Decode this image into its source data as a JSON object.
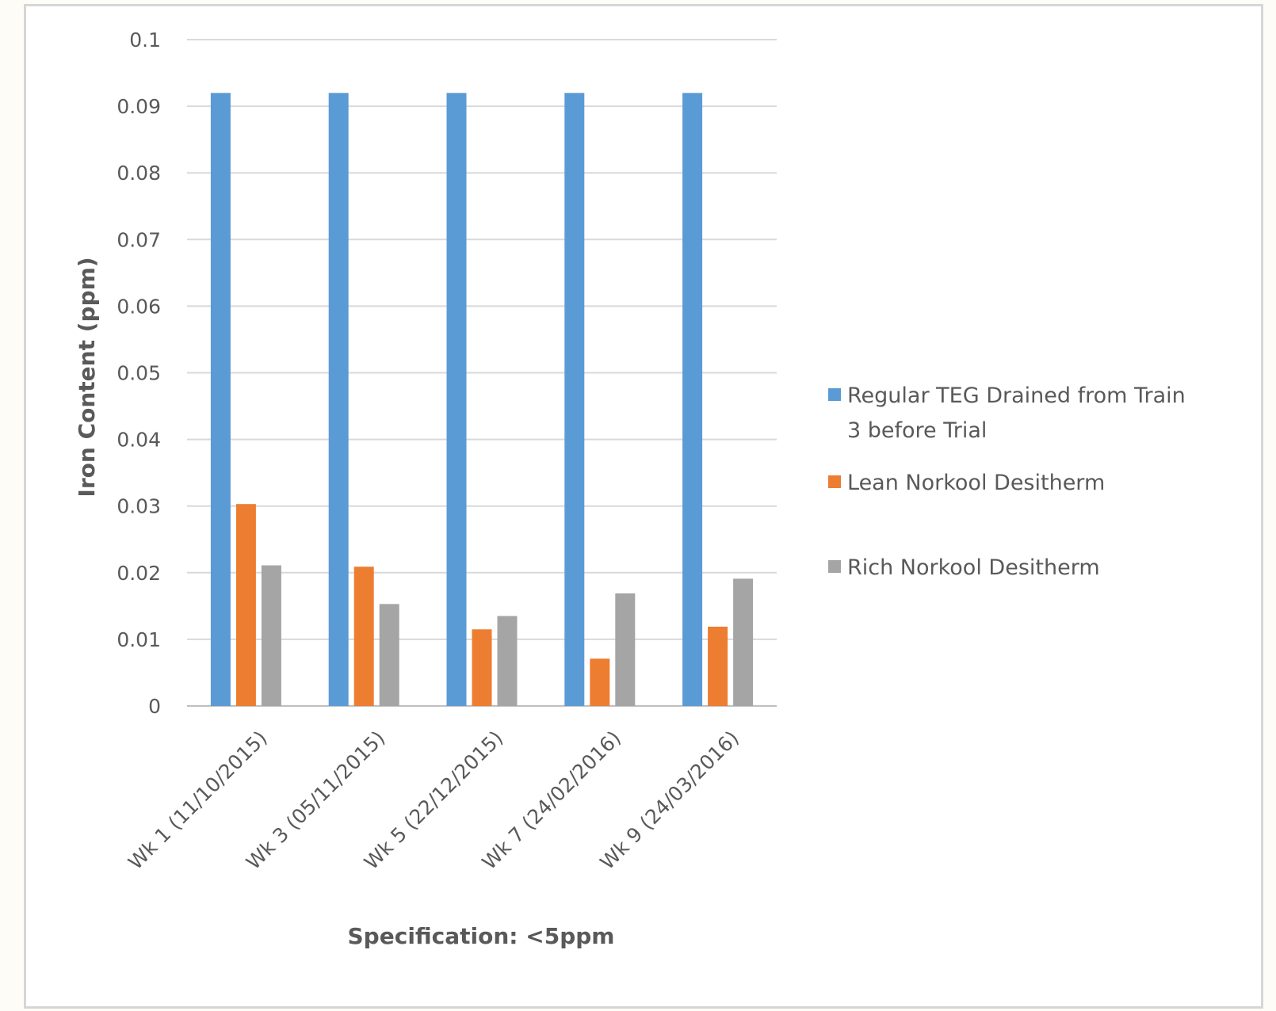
{
  "chart_data": {
    "type": "bar",
    "categories": [
      "Wk 1 (11/10/2015)",
      "Wk 3 (05/11/2015)",
      "Wk 5 (22/12/2015)",
      "Wk 7 (24/02/2016)",
      "Wk 9 (24/03/2016)"
    ],
    "series": [
      {
        "name": "Regular TEG Drained from Train 3 before Trial",
        "legend_lines": [
          "Regular TEG Drained from Train",
          "3 before Trial"
        ],
        "color": "#5b9bd5",
        "values": [
          0.092,
          0.092,
          0.092,
          0.092,
          0.092
        ]
      },
      {
        "name": "Lean Norkool Desitherm",
        "legend_lines": [
          "Lean Norkool Desitherm"
        ],
        "color": "#ed7d31",
        "values": [
          0.0303,
          0.0209,
          0.0115,
          0.0071,
          0.0119
        ]
      },
      {
        "name": "Rich Norkool Desitherm",
        "legend_lines": [
          "Rich Norkool Desitherm"
        ],
        "color": "#a5a5a5",
        "values": [
          0.0211,
          0.0153,
          0.0135,
          0.0169,
          0.0191
        ]
      }
    ],
    "title": "",
    "xlabel": "Specification: <5ppm",
    "ylabel": "Iron Content (ppm)",
    "ylim": [
      0,
      0.1
    ],
    "yticks": [
      "0",
      "0.01",
      "0.02",
      "0.03",
      "0.04",
      "0.05",
      "0.06",
      "0.07",
      "0.08",
      "0.09",
      "0.1"
    ],
    "grid": true,
    "legend_position": "right"
  }
}
